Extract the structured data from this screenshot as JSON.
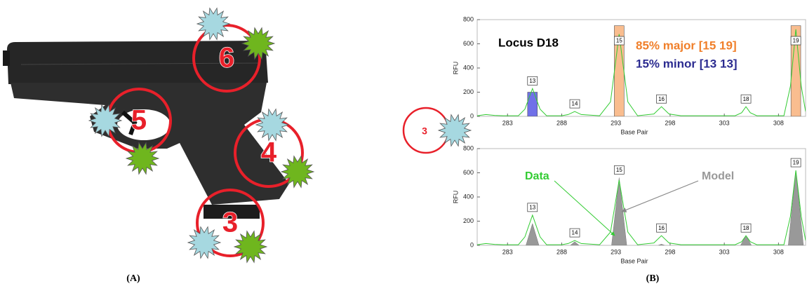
{
  "panel_a": {
    "label": "(A)",
    "sites": [
      "6",
      "5",
      "4",
      "3"
    ]
  },
  "panel_b": {
    "label": "(B)",
    "site": "3"
  },
  "chart_data": [
    {
      "type": "line",
      "ylabel": "RFU",
      "xlabel": "Base Pair",
      "xlim": [
        280.2,
        310.5
      ],
      "xticks": [
        283,
        288,
        293,
        298,
        303,
        308
      ],
      "ylim": [
        0,
        800
      ],
      "yticks": [
        0,
        200,
        400,
        600,
        800
      ],
      "annotations": [
        {
          "text": "Locus D18",
          "color": "#000000"
        },
        {
          "text": "85% major [15 19]",
          "color": "#f07f2a"
        },
        {
          "text": "15% minor [13 13]",
          "color": "#2b2b90"
        }
      ],
      "peaks": {
        "alleles": [
          "13",
          "14",
          "15",
          "16",
          "18",
          "19"
        ],
        "x": [
          285.3,
          289.2,
          293.3,
          297.2,
          305,
          309.6
        ]
      },
      "series": [
        {
          "kind": "bar",
          "x": [
            285.3,
            293.3,
            309.6
          ],
          "values": [
            200,
            750,
            750
          ],
          "colors": [
            "#7070e8",
            "#f9bd8f",
            "#f9bd8f"
          ],
          "width": 0.9
        },
        {
          "kind": "line",
          "color": "#33cc33",
          "x": [
            280.2,
            281,
            281.8,
            282.6,
            284,
            284.6,
            285.3,
            286,
            286.6,
            288,
            288.6,
            289.2,
            289.8,
            291.5,
            292.5,
            293.3,
            294.1,
            295,
            296.5,
            297.2,
            297.9,
            299,
            304,
            304.6,
            305,
            305.4,
            306,
            308.5,
            309.1,
            309.6,
            310.1,
            310.5
          ],
          "values": [
            5,
            15,
            8,
            5,
            5,
            60,
            230,
            60,
            5,
            5,
            15,
            40,
            15,
            5,
            120,
            680,
            120,
            5,
            20,
            80,
            20,
            5,
            5,
            30,
            80,
            30,
            5,
            5,
            250,
            720,
            250,
            40
          ]
        }
      ]
    },
    {
      "type": "line",
      "ylabel": "RFU",
      "xlabel": "Base Pair",
      "xlim": [
        280.2,
        310.5
      ],
      "xticks": [
        283,
        288,
        293,
        298,
        303,
        308
      ],
      "ylim": [
        0,
        800
      ],
      "yticks": [
        0,
        200,
        400,
        600,
        800
      ],
      "peaks": {
        "alleles": [
          "13",
          "14",
          "15",
          "16",
          "18",
          "19"
        ],
        "x": [
          285.3,
          289.2,
          293.3,
          297.2,
          305,
          309.6
        ]
      },
      "series": [
        {
          "kind": "area",
          "name": "Model",
          "color": "#999999",
          "x": [
            284.7,
            285.3,
            285.9,
            286,
            288.8,
            289.2,
            289.6,
            289.7,
            292.6,
            293.3,
            294,
            294.1,
            296.9,
            297.2,
            297.5,
            297.6,
            304.5,
            305,
            305.5,
            305.6,
            308.9,
            309.6,
            310.3
          ],
          "values": [
            0,
            180,
            0,
            null,
            0,
            30,
            0,
            null,
            0,
            560,
            0,
            null,
            0,
            10,
            0,
            null,
            0,
            80,
            0,
            null,
            0,
            620,
            0
          ]
        },
        {
          "kind": "line",
          "name": "Data",
          "color": "#33cc33",
          "x": [
            280.2,
            281,
            281.8,
            282.6,
            284,
            284.6,
            285.3,
            286,
            286.6,
            288,
            288.6,
            289.2,
            289.8,
            291.5,
            292.5,
            293.3,
            294.1,
            295,
            296.5,
            297.2,
            297.9,
            299,
            304,
            304.6,
            305,
            305.4,
            306,
            308.5,
            309.1,
            309.6,
            310.1,
            310.5
          ],
          "values": [
            5,
            15,
            8,
            5,
            5,
            70,
            250,
            70,
            5,
            5,
            15,
            40,
            15,
            5,
            110,
            540,
            110,
            5,
            20,
            80,
            20,
            5,
            5,
            30,
            80,
            30,
            5,
            5,
            240,
            620,
            240,
            40
          ]
        }
      ]
    }
  ]
}
